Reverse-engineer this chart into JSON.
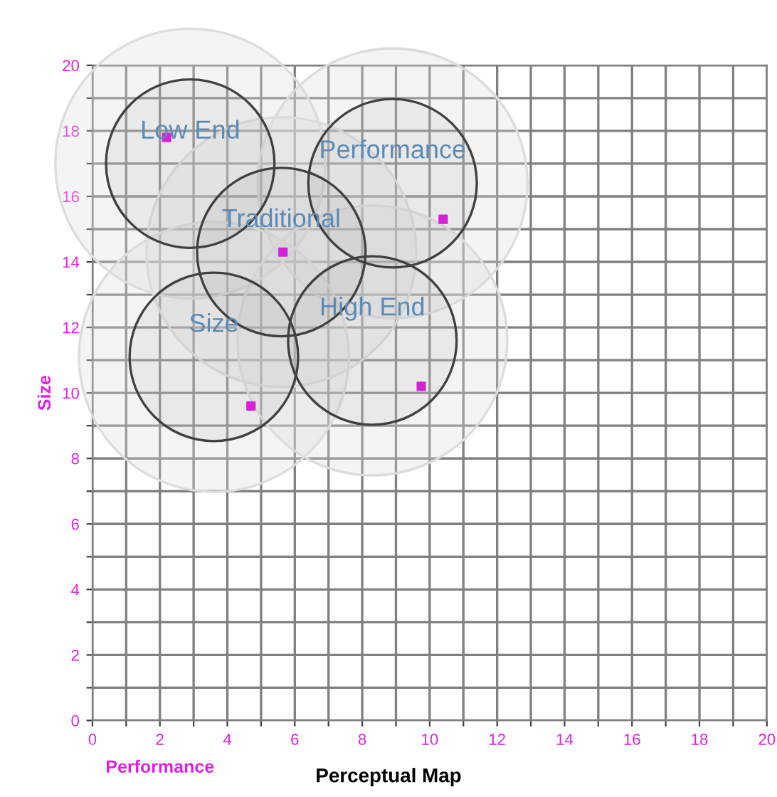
{
  "chart_data": {
    "type": "scatter",
    "title": "Perceptual Map",
    "xlabel": "Performance",
    "ylabel": "Size",
    "xlim": [
      0,
      20
    ],
    "ylim": [
      0,
      20
    ],
    "xticks": [
      0,
      {
        "value": 1,
        "label": null
      },
      2,
      {
        "value": 3,
        "label": null
      },
      4,
      {
        "value": 5,
        "label": null
      },
      6,
      {
        "value": 7,
        "label": null
      },
      8,
      {
        "value": 9,
        "label": null
      },
      10,
      {
        "value": 11,
        "label": null
      },
      12,
      {
        "value": 13,
        "label": null
      },
      14,
      {
        "value": 15,
        "label": null
      },
      16,
      {
        "value": 17,
        "label": null
      },
      18,
      {
        "value": 19,
        "label": null
      },
      20
    ],
    "yticks": [
      0,
      {
        "value": 1,
        "label": null
      },
      2,
      {
        "value": 3,
        "label": null
      },
      4,
      {
        "value": 5,
        "label": null
      },
      6,
      {
        "value": 7,
        "label": null
      },
      8,
      {
        "value": 9,
        "label": null
      },
      10,
      {
        "value": 11,
        "label": null
      },
      12,
      {
        "value": 13,
        "label": null
      },
      14,
      {
        "value": 15,
        "label": null
      },
      16,
      {
        "value": 17,
        "label": null
      },
      18,
      {
        "value": 19,
        "label": null
      },
      20
    ],
    "grid": true,
    "legend": false,
    "series": [
      {
        "type": "bubble",
        "color": "#dcdcdc",
        "x": [
          2.9,
          8.9,
          5.6,
          3.6,
          8.3
        ],
        "values": [
          17.0,
          16.4,
          14.3,
          11.1,
          11.6
        ],
        "sizes": [
          1,
          1,
          1,
          1,
          1
        ]
      },
      {
        "type": "bubble",
        "color": "#404040",
        "x": [
          2.9,
          8.9,
          5.6,
          3.6,
          8.3
        ],
        "values": [
          17.0,
          16.4,
          14.3,
          11.1,
          11.6
        ],
        "sizes": [
          0.39,
          0.39,
          0.39,
          0.39,
          0.39
        ],
        "value_labels": [
          "Low End",
          "Performance",
          "Traditional",
          "Size",
          "High End"
        ]
      },
      {
        "color": "#e020e0",
        "marker": "square",
        "x": [
          2.2,
          10.4,
          5.65,
          4.7,
          9.75
        ],
        "values": [
          17.8,
          15.3,
          14.3,
          9.6,
          10.2
        ]
      }
    ]
  }
}
